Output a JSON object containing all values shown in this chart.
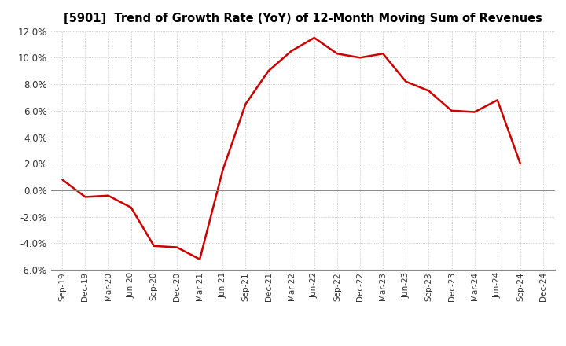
{
  "title": "[5901]  Trend of Growth Rate (YoY) of 12-Month Moving Sum of Revenues",
  "x_labels": [
    "Sep-19",
    "Dec-19",
    "Mar-20",
    "Jun-20",
    "Sep-20",
    "Dec-20",
    "Mar-21",
    "Jun-21",
    "Sep-21",
    "Dec-21",
    "Mar-22",
    "Jun-22",
    "Sep-22",
    "Dec-22",
    "Mar-23",
    "Jun-23",
    "Sep-23",
    "Dec-23",
    "Mar-24",
    "Jun-24",
    "Sep-24",
    "Dec-24"
  ],
  "y_values": [
    0.008,
    -0.005,
    -0.004,
    -0.013,
    -0.042,
    -0.043,
    -0.052,
    0.015,
    0.065,
    0.09,
    0.105,
    0.115,
    0.103,
    0.1,
    0.103,
    0.082,
    0.075,
    0.06,
    0.059,
    0.068,
    0.02,
    null
  ],
  "line_color": "#cc0000",
  "background_color": "#ffffff",
  "grid_color": "#aaaaaa",
  "ylim": [
    -0.06,
    0.12
  ],
  "yticks": [
    -0.06,
    -0.04,
    -0.02,
    0.0,
    0.02,
    0.04,
    0.06,
    0.08,
    0.1,
    0.12
  ]
}
